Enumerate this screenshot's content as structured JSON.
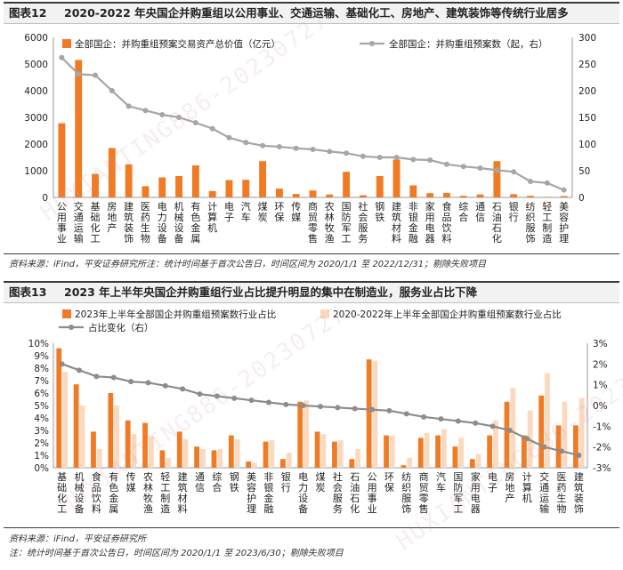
{
  "figure1": {
    "num": "图表12",
    "title": "2020-2022 年央国企并购重组以公用事业、交通运输、基础化工、房地产、建筑装饰等传统行业居多",
    "source": "资料来源：iFind，平安证券研究所注：统计时间基于首次公告日，时间区间为 2020/1/1 至 2022/12/31；剔除失败项目",
    "colors": {
      "bar": "#f07b24",
      "line": "#a6a6a6"
    },
    "chart_data": {
      "type": "bar+line",
      "categories": [
        "公用事业",
        "交通运输",
        "基础化工",
        "房地产",
        "建筑装饰",
        "医药生物",
        "电力设备",
        "机械设备",
        "有色金属",
        "计算机",
        "电子",
        "汽车",
        "煤炭",
        "环保",
        "传媒",
        "商贸零售",
        "农林牧渔",
        "国防军工",
        "社会服务",
        "钢铁",
        "建筑材料",
        "非银金融",
        "家用电器",
        "食品饮料",
        "综合",
        "通信",
        "石油石化",
        "银行",
        "纺织服饰",
        "轻工制造",
        "美容护理"
      ],
      "series": [
        {
          "name": "全部国企：并购重组预案交易资产总价值（亿元）",
          "axis": "left",
          "type": "bar",
          "values": [
            2780,
            5150,
            880,
            1850,
            1240,
            420,
            750,
            800,
            1200,
            240,
            650,
            660,
            1360,
            330,
            130,
            260,
            110,
            960,
            80,
            800,
            1420,
            450,
            160,
            170,
            60,
            110,
            1360,
            120,
            60,
            20,
            50
          ]
        },
        {
          "name": "全部国企：并购重组预案数（起，右）",
          "axis": "right",
          "type": "line",
          "values": [
            262,
            231,
            229,
            200,
            171,
            163,
            155,
            150,
            140,
            129,
            112,
            103,
            97,
            95,
            92,
            90,
            86,
            83,
            77,
            75,
            75,
            71,
            70,
            62,
            58,
            55,
            51,
            48,
            30,
            27,
            14
          ]
        }
      ],
      "yleft": {
        "min": 0,
        "max": 6000,
        "ticks": [
          0,
          1000,
          2000,
          3000,
          4000,
          5000,
          6000
        ]
      },
      "yright": {
        "min": 0,
        "max": 300,
        "ticks": [
          0,
          50,
          100,
          150,
          200,
          250,
          300
        ]
      }
    }
  },
  "figure2": {
    "num": "图表13",
    "title": "2023 年上半年央国企并购重组行业占比提升明显的集中在制造业，服务业占比下降",
    "source1": "资料来源：iFind，平安证券研究所",
    "source2": "注：统计时间基于首次公告日，时间区间为 2020/1/1 至 2023/6/30；剔除失败项目",
    "colors": {
      "bar1": "#f07b24",
      "bar2": "#fbd9bf",
      "line": "#8c8c8c"
    },
    "chart_data": {
      "type": "bar+line",
      "categories": [
        "基础化工",
        "机械设备",
        "食品饮料",
        "有色金属",
        "传媒",
        "农林牧渔",
        "轻工制造",
        "建筑材料",
        "通信",
        "综合",
        "钢铁",
        "美容护理",
        "非银金融",
        "银行",
        "电力设备",
        "煤炭",
        "社会服务",
        "石油石化",
        "公用事业",
        "环保",
        "纺织服饰",
        "商贸零售",
        "汽车",
        "国防军工",
        "家用电器",
        "电子",
        "房地产",
        "计算机",
        "交通运输",
        "医药生物",
        "建筑装饰"
      ],
      "series": [
        {
          "name": "2023年上半年全部国企并购重组预案数行业占比",
          "axis": "left",
          "type": "bar",
          "values": [
            9.6,
            6.7,
            2.9,
            6.0,
            3.8,
            3.6,
            1.4,
            2.9,
            1.7,
            1.4,
            2.6,
            0.5,
            2.1,
            0.7,
            5.3,
            2.9,
            2.1,
            0.7,
            8.7,
            2.6,
            0.2,
            2.4,
            2.6,
            1.7,
            0.7,
            2.6,
            5.3,
            2.6,
            5.8,
            3.4,
            3.4
          ]
        },
        {
          "name": "2020-2022年上半年全部国企并购重组预案数行业占比",
          "axis": "left",
          "type": "bar",
          "values": [
            7.7,
            5.0,
            1.5,
            5.0,
            2.7,
            2.5,
            0.8,
            2.3,
            1.5,
            1.5,
            2.3,
            0.4,
            2.2,
            1.2,
            5.4,
            2.7,
            2.2,
            1.5,
            8.6,
            2.6,
            0.8,
            2.8,
            3.1,
            2.4,
            1.1,
            3.8,
            6.4,
            4.6,
            7.6,
            5.3,
            5.6
          ]
        },
        {
          "name": "占比变化（右）",
          "axis": "right",
          "type": "line",
          "values": [
            2.0,
            1.7,
            1.4,
            1.35,
            1.15,
            1.1,
            0.95,
            0.8,
            0.55,
            0.45,
            0.35,
            0.25,
            0.15,
            0.05,
            0.0,
            -0.05,
            -0.1,
            -0.15,
            -0.2,
            -0.25,
            -0.4,
            -0.55,
            -0.65,
            -0.75,
            -0.85,
            -1.0,
            -1.2,
            -1.6,
            -2.0,
            -2.2,
            -2.4
          ]
        }
      ],
      "yleft": {
        "min": 0,
        "max": 10,
        "ticks": [
          0,
          1,
          2,
          3,
          4,
          5,
          6,
          7,
          8,
          9,
          10
        ],
        "unit": "%"
      },
      "yright": {
        "min": -3,
        "max": 3,
        "ticks": [
          -3,
          -2,
          -1,
          0,
          1,
          2,
          3
        ],
        "unit": "%"
      }
    }
  },
  "watermark": "HUXIANTING886-20230727"
}
